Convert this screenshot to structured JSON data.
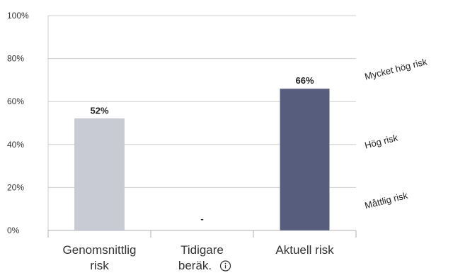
{
  "chart_data": {
    "type": "bar",
    "categories": [
      {
        "lines": [
          "Genomsnittlig",
          "risk"
        ],
        "info_icon": false
      },
      {
        "lines": [
          "Tidigare",
          "beräk."
        ],
        "info_icon": true
      },
      {
        "lines": [
          "Aktuell risk"
        ],
        "info_icon": false
      }
    ],
    "values": [
      52,
      null,
      66
    ],
    "data_labels": [
      "52%",
      "-",
      "66%"
    ],
    "bar_colors": [
      "#c9cbd4",
      null,
      "#575e7d"
    ],
    "ylim": [
      0,
      100
    ],
    "yticks": [
      "0%",
      "20%",
      "40%",
      "60%",
      "80%",
      "100%"
    ],
    "grid": true,
    "risk_zones": [
      "Måttlig risk",
      "Hög risk",
      "Mycket hög risk"
    ]
  },
  "icons": {
    "info": "info-circle-icon"
  }
}
